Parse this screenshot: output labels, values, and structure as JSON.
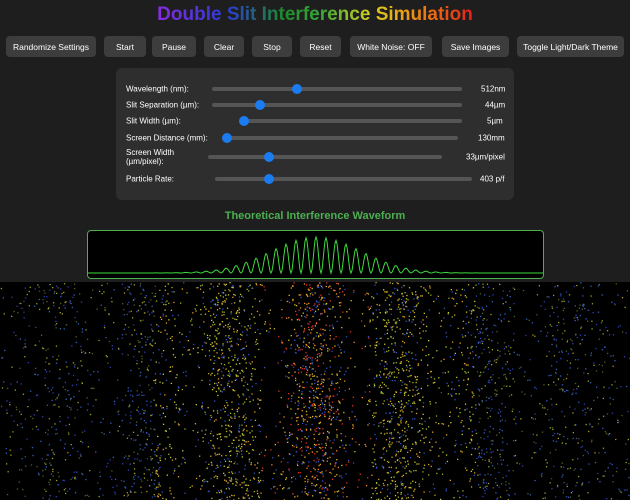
{
  "title": "Double Slit Interference Simulation",
  "buttons": [
    "Randomize Settings",
    "Start",
    "Pause",
    "Clear",
    "Stop",
    "Reset",
    "White Noise: OFF",
    "Save Images",
    "Toggle Light/Dark Theme"
  ],
  "controls": [
    {
      "label": "Wavelength (nm):",
      "value": "512nm"
    },
    {
      "label": "Slit Separation (µm):",
      "value": "44µm"
    },
    {
      "label": "Slit Width (µm):",
      "value": "5µm"
    },
    {
      "label": "Screen Distance (mm):",
      "value": "130mm"
    },
    {
      "label": "Screen Width (µm/pixel):",
      "value": "33µm/pixel"
    },
    {
      "label": "Particle Rate:",
      "value": "403 p/f"
    }
  ],
  "waveform_title": "Theoretical Interference Waveform"
}
